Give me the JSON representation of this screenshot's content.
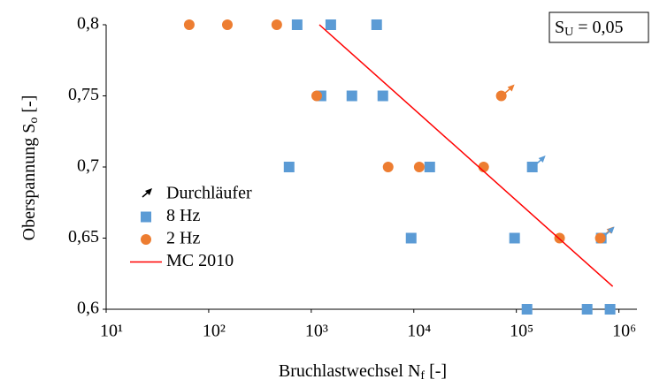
{
  "chart_data": {
    "type": "scatter",
    "xlabel": {
      "text": "Bruchlastwechsel N",
      "sub": "f",
      "rest": " [-]"
    },
    "ylabel": {
      "text": "Oberspannung S",
      "sub": "o",
      "rest": " [-]"
    },
    "annotation": {
      "text": "S",
      "sub": "U",
      "rest": " = 0,05"
    },
    "xscale": "log",
    "xlim": [
      10,
      1500000
    ],
    "ylim": [
      0.6,
      0.8
    ],
    "xticks": [
      {
        "value": 10,
        "label": "10¹"
      },
      {
        "value": 100,
        "label": "10²"
      },
      {
        "value": 1000,
        "label": "10³"
      },
      {
        "value": 10000,
        "label": "10⁴"
      },
      {
        "value": 100000,
        "label": "10⁵"
      },
      {
        "value": 1000000,
        "label": "10⁶"
      }
    ],
    "yticks": [
      {
        "value": 0.6,
        "label": "0,6"
      },
      {
        "value": 0.65,
        "label": "0,65"
      },
      {
        "value": 0.7,
        "label": "0,7"
      },
      {
        "value": 0.75,
        "label": "0,75"
      },
      {
        "value": 0.8,
        "label": "0,8"
      }
    ],
    "grid": false,
    "legend": "left",
    "series": [
      {
        "name": "Durchläufer",
        "marker": "arrow",
        "color": "#000000",
        "colors": [
          "#ed7d31",
          "#5b9bd5",
          "#ed7d31",
          "#5b9bd5"
        ],
        "x": [
          71300,
          143000,
          659000,
          673000
        ],
        "values": [
          0.75,
          0.7,
          0.65,
          0.65
        ]
      },
      {
        "name": "8 Hz",
        "marker": "square",
        "color": "#5b9bd5",
        "x": [
          728,
          1550,
          4340,
          1245,
          2490,
          4990,
          608,
          14300,
          143000,
          9420,
          96100,
          673000,
          127000,
          490000,
          820000
        ],
        "values": [
          0.8,
          0.8,
          0.8,
          0.75,
          0.75,
          0.75,
          0.7,
          0.7,
          0.7,
          0.65,
          0.65,
          0.65,
          0.6,
          0.6,
          0.6
        ]
      },
      {
        "name": "2 Hz",
        "marker": "circle",
        "color": "#ed7d31",
        "x": [
          64.6,
          152,
          461,
          1130,
          71300,
          5620,
          11300,
          48000,
          264000,
          659000
        ],
        "values": [
          0.8,
          0.8,
          0.8,
          0.75,
          0.75,
          0.7,
          0.7,
          0.7,
          0.65,
          0.65
        ]
      },
      {
        "name": "MC 2010",
        "marker": "line",
        "color": "#ff0000",
        "x": [
          1200,
          871000
        ],
        "values": [
          0.8,
          0.616
        ]
      }
    ]
  }
}
